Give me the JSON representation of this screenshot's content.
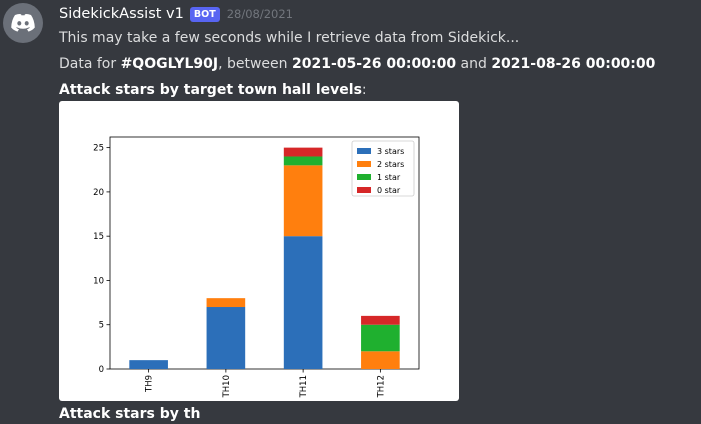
{
  "message": {
    "username": "SidekickAssist v1",
    "bot_tag": "BOT",
    "timestamp": "28/08/2021",
    "line1": "This may take a few seconds while I retrieve data from Sidekick...",
    "line2_prefix": "Data for ",
    "clan_tag": "#QOGLYL90J",
    "line2_between": ", between ",
    "date_start": "2021-05-26 00:00:00",
    "line2_and": " and ",
    "date_end": "2021-08-26 00:00:00",
    "line3": "Attack stars by target town hall levels",
    "line3_suffix": ":",
    "cut_text": "Attack stars by th"
  },
  "icons": {
    "avatar": "discord-logo-icon"
  },
  "colors": {
    "background": "#36393f",
    "bot_tag": "#5865f2",
    "avatar_bg": "#6b7079"
  },
  "chart_data": {
    "type": "bar",
    "stacked": true,
    "categories": [
      "TH9",
      "TH10",
      "TH11",
      "TH12"
    ],
    "series": [
      {
        "name": "3 stars",
        "color": "#2c6fb9",
        "values": [
          1,
          7,
          15,
          0
        ]
      },
      {
        "name": "2 stars",
        "color": "#ff7f0e",
        "values": [
          0,
          1,
          8,
          2
        ]
      },
      {
        "name": "1 star",
        "color": "#1fb02f",
        "values": [
          0,
          0,
          1,
          3
        ]
      },
      {
        "name": "0 star",
        "color": "#d62728",
        "values": [
          0,
          0,
          1,
          1
        ]
      }
    ],
    "yticks": [
      0,
      5,
      10,
      15,
      20,
      25
    ],
    "ylim": [
      0,
      26.2
    ],
    "legend": "top-right",
    "grid": false
  }
}
